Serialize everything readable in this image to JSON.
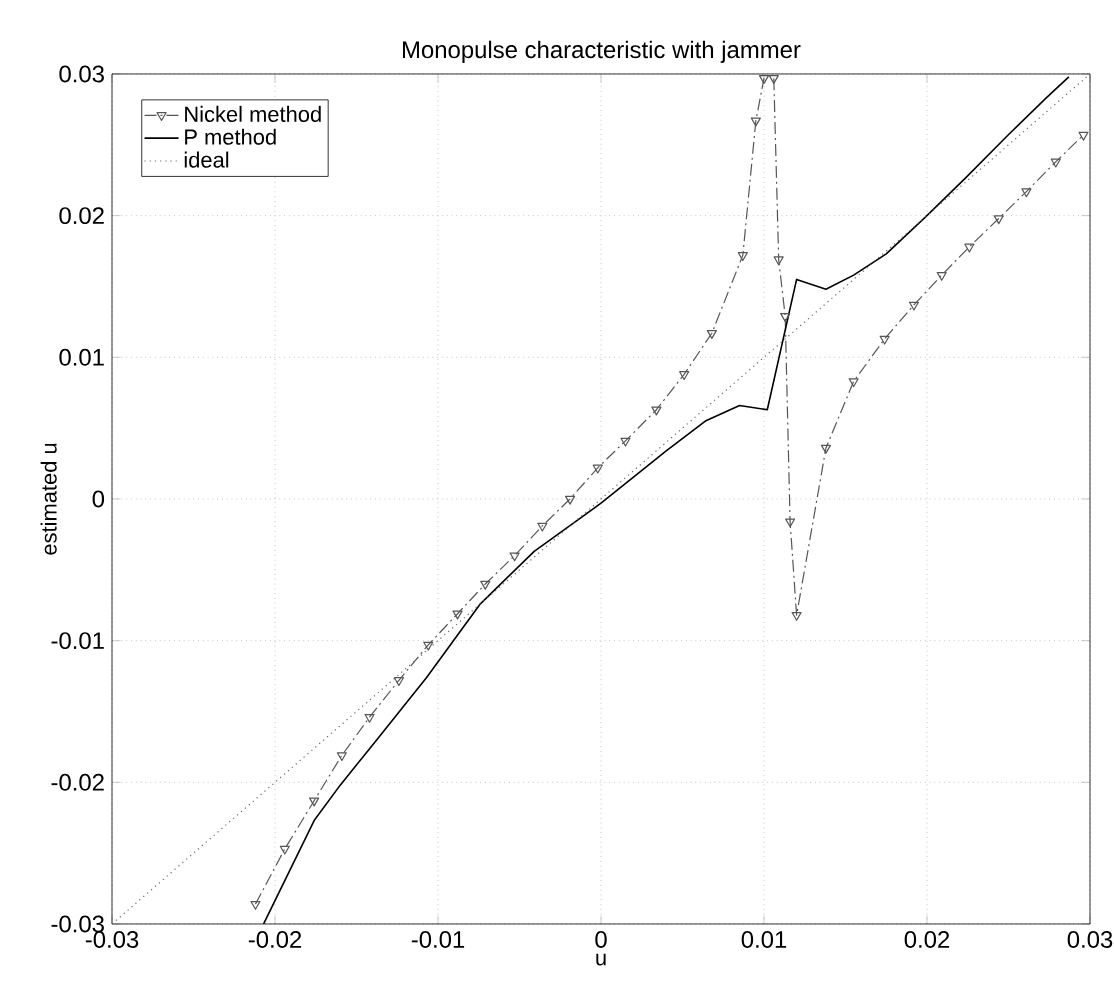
{
  "chart_data": {
    "type": "line",
    "title": "Monopulse characteristic with jammer",
    "xlabel": "u",
    "ylabel": "estimated u",
    "xlim": [
      -0.03,
      0.03
    ],
    "ylim": [
      -0.03,
      0.03
    ],
    "xticks": [
      -0.03,
      -0.02,
      -0.01,
      0,
      0.01,
      0.02,
      0.03
    ],
    "yticks": [
      -0.03,
      -0.02,
      -0.01,
      0,
      0.01,
      0.02,
      0.03
    ],
    "grid": true,
    "legend": "top left",
    "series": [
      {
        "name": "Nickel method",
        "color": "#555555",
        "line_style": "dashed",
        "marker": "triangle",
        "x": [
          -0.0212,
          -0.0194,
          -0.0176,
          -0.0159,
          -0.0142,
          -0.0124,
          -0.0106,
          -0.0088,
          -0.0071,
          -0.0053,
          -0.0036,
          -0.0019,
          -0.0002,
          0.0015,
          0.0034,
          0.0051,
          0.0068,
          0.0087,
          0.0095,
          0.01,
          0.0103,
          0.0106,
          0.0109,
          0.0113,
          0.0116,
          0.012,
          0.0138,
          0.0155,
          0.0174,
          0.0192,
          0.0209,
          0.0226,
          0.0244,
          0.0261,
          0.0279,
          0.0296
        ],
        "values": [
          -0.0286,
          -0.0247,
          -0.0213,
          -0.0181,
          -0.0154,
          -0.0128,
          -0.0103,
          -0.0081,
          -0.006,
          -0.004,
          -0.0019,
          0.0,
          0.0022,
          0.0041,
          0.0063,
          0.0088,
          0.0117,
          0.0172,
          0.0267,
          0.0297,
          null,
          0.0297,
          0.0169,
          0.0129,
          -0.0016,
          -0.0082,
          0.0036,
          0.0083,
          0.0113,
          0.0137,
          0.0158,
          0.0178,
          0.0198,
          0.0217,
          0.0238,
          0.0257
        ]
      },
      {
        "name": "P method",
        "color": "#000000",
        "line_style": "solid",
        "marker": "none",
        "x": [
          -0.0207,
          -0.0176,
          -0.016,
          -0.0139,
          -0.0107,
          -0.0074,
          -0.0041,
          0.0,
          0.004,
          0.0064,
          0.0085,
          0.0102,
          0.012,
          0.0138,
          0.0155,
          0.0175,
          0.0199,
          0.0224,
          0.0249,
          0.0273,
          0.0287
        ],
        "values": [
          -0.03,
          -0.0227,
          -0.0202,
          -0.0172,
          -0.0126,
          -0.0074,
          -0.0037,
          -0.0003,
          0.0034,
          0.0055,
          0.0066,
          0.0063,
          0.0155,
          0.0148,
          0.0158,
          0.0173,
          0.0199,
          0.0227,
          0.0256,
          0.0283,
          0.0298
        ]
      },
      {
        "name": "ideal",
        "color": "#666666",
        "line_style": "dotted",
        "marker": "none",
        "x": [
          -0.03,
          0.03
        ],
        "values": [
          -0.03,
          0.03
        ]
      }
    ]
  }
}
